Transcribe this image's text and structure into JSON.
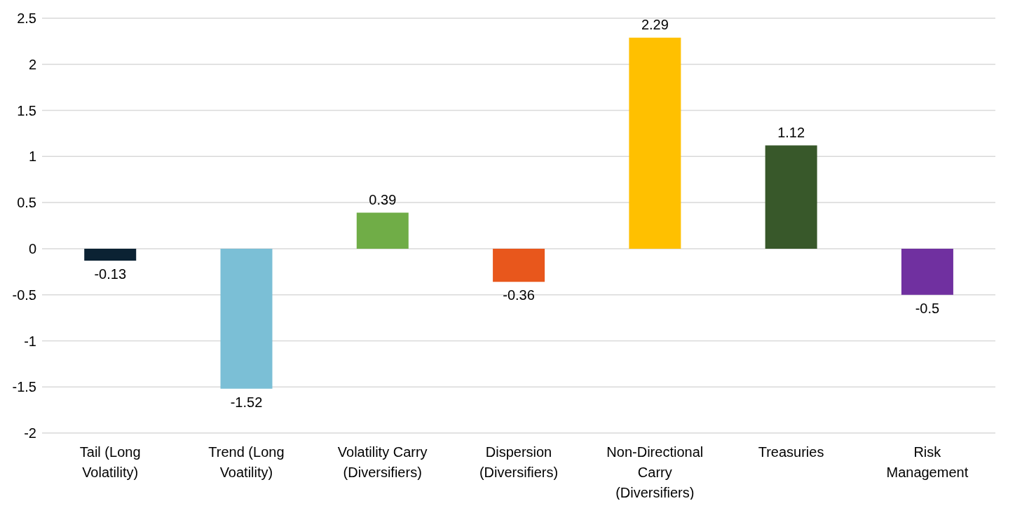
{
  "chart_data": {
    "type": "bar",
    "categories": [
      "Tail (Long Volatility)",
      "Trend (Long Voatility)",
      "Volatility Carry (Diversifiers)",
      "Dispersion (Diversifiers)",
      "Non-Directional Carry (Diversifiers)",
      "Treasuries",
      "Risk Management"
    ],
    "values": [
      -0.13,
      -1.52,
      0.39,
      -0.36,
      2.29,
      1.12,
      -0.5
    ],
    "colors": [
      "#0b2233",
      "#7bbfd6",
      "#70ad47",
      "#e8571c",
      "#ffc000",
      "#38582a",
      "#7030a0"
    ],
    "ylim": [
      -2,
      2.5
    ],
    "yticks": [
      -2,
      -1.5,
      -1,
      -0.5,
      0,
      0.5,
      1,
      1.5,
      2,
      2.5
    ],
    "grid": "y",
    "data_labels": true
  }
}
